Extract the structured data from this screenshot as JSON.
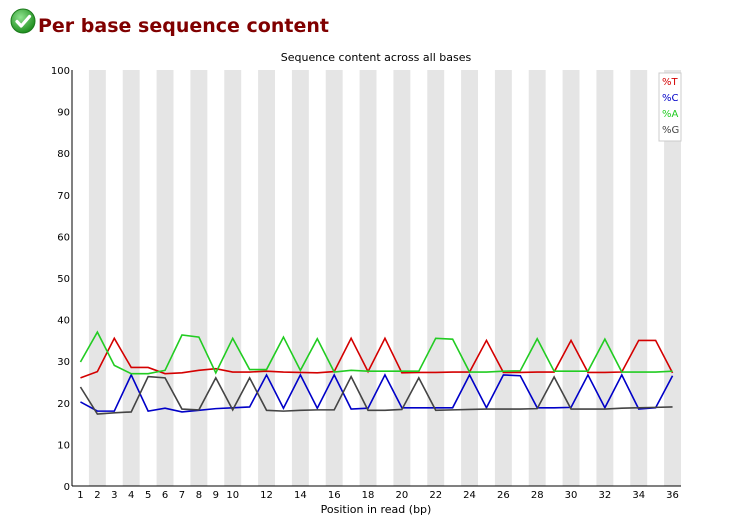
{
  "header": {
    "title": "Per base sequence content",
    "status_icon": "check-icon",
    "status_color": "#3aa33a"
  },
  "chart_data": {
    "type": "line",
    "title": "Sequence content across all bases",
    "xlabel": "Position in read (bp)",
    "ylabel": "",
    "ylim": [
      0,
      100
    ],
    "yticks": [
      0,
      10,
      20,
      30,
      40,
      50,
      60,
      70,
      80,
      90,
      100
    ],
    "x": [
      1,
      2,
      3,
      4,
      5,
      6,
      7,
      8,
      9,
      10,
      11,
      12,
      13,
      14,
      15,
      16,
      17,
      18,
      19,
      20,
      21,
      22,
      23,
      24,
      25,
      26,
      27,
      28,
      29,
      30,
      31,
      32,
      33,
      34,
      35,
      36
    ],
    "xtick_labels": [
      "1",
      "2",
      "3",
      "4",
      "5",
      "6",
      "7",
      "8",
      "9",
      "10",
      "12",
      "14",
      "16",
      "18",
      "20",
      "22",
      "24",
      "26",
      "28",
      "30",
      "32",
      "34",
      "36"
    ],
    "xtick_positions": [
      1,
      2,
      3,
      4,
      5,
      6,
      7,
      8,
      9,
      10,
      12,
      14,
      16,
      18,
      20,
      22,
      24,
      26,
      28,
      30,
      32,
      34,
      36
    ],
    "grid": "alternating vertical bands",
    "legend_position": "top-right",
    "series": [
      {
        "name": "%T",
        "color": "#d40000",
        "values": [
          26,
          27.5,
          35.5,
          28.5,
          28.5,
          27,
          27.2,
          27.8,
          28.2,
          27.4,
          27.4,
          27.6,
          27.4,
          27.3,
          27.2,
          27.5,
          35.5,
          27.5,
          35.5,
          27.2,
          27.3,
          27.3,
          27.4,
          27.4,
          35,
          27.3,
          27.3,
          27.4,
          27.4,
          35,
          27.3,
          27.3,
          27.4,
          35,
          35,
          27.2
        ]
      },
      {
        "name": "%C",
        "color": "#0000c8",
        "values": [
          20.2,
          18,
          18,
          26.7,
          18,
          18.7,
          17.8,
          18.2,
          18.6,
          18.8,
          19,
          26.7,
          18.7,
          26.7,
          18.7,
          26.7,
          18.5,
          18.7,
          26.7,
          18.8,
          18.8,
          18.8,
          18.8,
          26.7,
          18.8,
          26.7,
          26.5,
          18.8,
          18.8,
          18.9,
          26.7,
          18.8,
          26.7,
          18.5,
          18.8,
          26.5
        ]
      },
      {
        "name": "%A",
        "color": "#22cc22",
        "values": [
          29.8,
          37,
          29,
          27,
          27,
          27.8,
          36.3,
          35.8,
          27.2,
          35.5,
          28,
          28,
          35.8,
          27.8,
          35.4,
          27.4,
          27.8,
          27.6,
          27.6,
          27.6,
          27.6,
          35.5,
          35.3,
          27.4,
          27.4,
          27.6,
          27.7,
          35.4,
          27.6,
          27.6,
          27.6,
          35.3,
          27.4,
          27.4,
          27.4,
          27.6
        ]
      },
      {
        "name": "%G",
        "color": "#444444",
        "values": [
          23.8,
          17.3,
          17.6,
          17.8,
          26.3,
          26,
          18.5,
          18.3,
          26,
          18.3,
          26,
          18.2,
          18,
          18.2,
          18.3,
          18.3,
          26.3,
          18.2,
          18.2,
          18.4,
          26,
          18.2,
          18.3,
          18.4,
          18.5,
          18.5,
          18.5,
          18.6,
          26.2,
          18.5,
          18.5,
          18.5,
          18.7,
          18.8,
          18.9,
          19
        ]
      }
    ]
  }
}
